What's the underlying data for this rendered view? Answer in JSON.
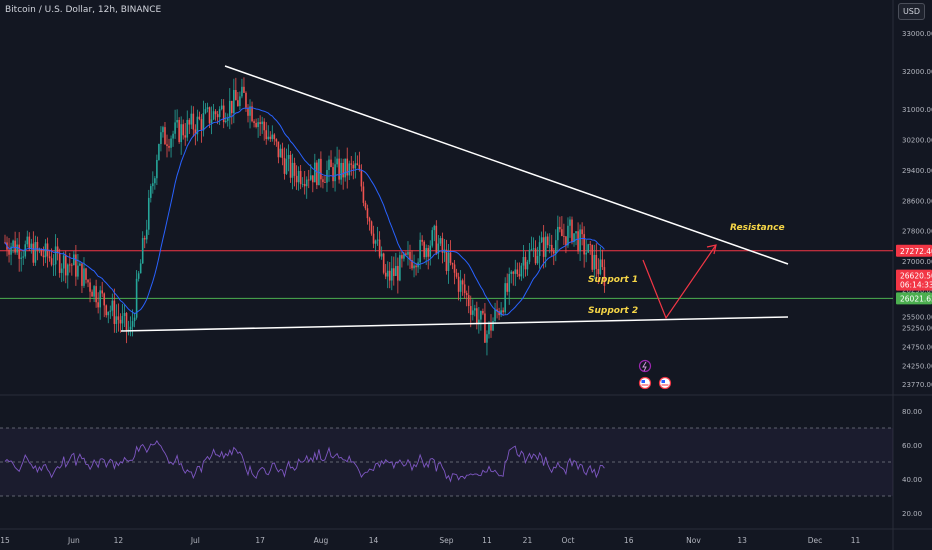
{
  "header": {
    "title": "Bitcoin / U.S. Dollar, 12h, BINANCE",
    "currency_button": "USD"
  },
  "colors": {
    "background": "#131722",
    "candle_up": "#26a69a",
    "candle_down": "#ef5350",
    "ma_line": "#2962ff",
    "rsi_line": "#7e57c2",
    "resistance_line": "#f23645",
    "support_line": "#4caf50",
    "trendline": "#ffffff",
    "projection": "#f23645",
    "annotation_text": "#f5d547"
  },
  "chart_data": [
    {
      "type": "candlestick",
      "price_axis": {
        "ticks": [
          "33000.00",
          "32000.00",
          "31000.00",
          "30200.00",
          "29400.00",
          "28600.00",
          "27800.00",
          "27000.00",
          "26250.00",
          "25500.00",
          "25250.00",
          "24750.00",
          "24250.00",
          "23770.00"
        ]
      },
      "x_axis": {
        "ticks": [
          "15",
          "Jun",
          "12",
          "Jul",
          "17",
          "Aug",
          "14",
          "Sep",
          "11",
          "21",
          "Oct",
          "16",
          "Nov",
          "13",
          "Dec",
          "11"
        ]
      },
      "price_labels": [
        {
          "value": "27272.40",
          "color": "#f23645"
        },
        {
          "value": "26620.50",
          "color": "#f23645"
        },
        {
          "value": "06:14:33",
          "color": "#f23645"
        },
        {
          "value": "26021.63",
          "color": "#4caf50"
        }
      ],
      "horizontal_levels": [
        {
          "name": "resistance",
          "value": 27272.4,
          "color": "#f23645"
        },
        {
          "name": "support",
          "value": 26021.63,
          "color": "#4caf50"
        }
      ],
      "annotations": [
        "Resistance",
        "Support 1",
        "Support 2"
      ],
      "series": [
        {
          "kind": "ohlc",
          "description_points": [
            {
              "x": "May 15",
              "y": 27500
            },
            {
              "x": "Jun 1",
              "y": 26900
            },
            {
              "x": "Jun 15",
              "y": 25100
            },
            {
              "x": "Jun 22",
              "y": 30200
            },
            {
              "x": "Jul 1",
              "y": 30600
            },
            {
              "x": "Jul 13",
              "y": 31300
            },
            {
              "x": "Jul 25",
              "y": 29300
            },
            {
              "x": "Aug 10",
              "y": 29400
            },
            {
              "x": "Aug 17",
              "y": 26500
            },
            {
              "x": "Aug 29",
              "y": 27600
            },
            {
              "x": "Sep 11",
              "y": 25100
            },
            {
              "x": "Sep 20",
              "y": 27100
            },
            {
              "x": "Oct 2",
              "y": 27800
            },
            {
              "x": "Oct 10",
              "y": 26600
            }
          ]
        }
      ]
    },
    {
      "type": "line",
      "name": "RSI",
      "y_axis": {
        "ticks": [
          "80.00",
          "60.00",
          "40.00",
          "20.00"
        ]
      },
      "bands": [
        70,
        50,
        30
      ],
      "ylim": [
        15,
        85
      ]
    }
  ]
}
